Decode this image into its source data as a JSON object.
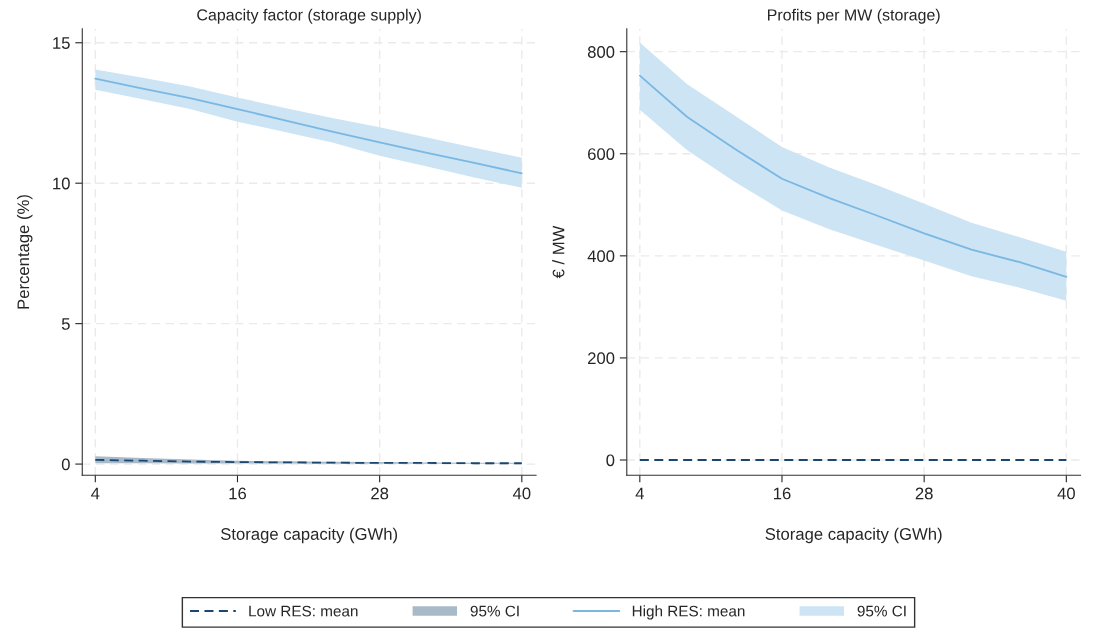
{
  "chart_data": [
    {
      "type": "line",
      "title": "Capacity factor (storage supply)",
      "xlabel": "Storage capacity (GWh)",
      "ylabel": "Percentage (%)",
      "x": [
        4,
        8,
        12,
        16,
        20,
        24,
        28,
        32,
        36,
        40
      ],
      "xlim": [
        2.9,
        41.2
      ],
      "xticks": [
        4,
        16,
        28,
        40
      ],
      "ylim": [
        -0.4,
        15.5
      ],
      "yticks": [
        0,
        5,
        10,
        15
      ],
      "grid": true,
      "legend": "bottom",
      "annotations": [
        "95% CI",
        "95% CI"
      ],
      "series": [
        {
          "name": "Low RES: mean",
          "color": "#1a476f",
          "line_style": "dashed",
          "values": [
            0.15,
            0.12,
            0.09,
            0.07,
            0.06,
            0.05,
            0.04,
            0.04,
            0.03,
            0.03
          ],
          "lower": [
            0.03,
            0.03,
            0.02,
            0.02,
            0.02,
            0.01,
            0.01,
            0.01,
            0.01,
            0.01
          ],
          "upper": [
            0.28,
            0.22,
            0.16,
            0.12,
            0.1,
            0.08,
            0.07,
            0.06,
            0.05,
            0.05
          ]
        },
        {
          "name": "High RES: mean",
          "color": "#7ab8e3",
          "line_style": "solid",
          "values": [
            13.72,
            13.37,
            13.03,
            12.64,
            12.24,
            11.84,
            11.45,
            11.08,
            10.72,
            10.35
          ],
          "lower": [
            13.33,
            12.99,
            12.64,
            12.19,
            11.82,
            11.45,
            10.98,
            10.59,
            10.2,
            9.84
          ],
          "upper": [
            14.05,
            13.75,
            13.44,
            13.05,
            12.68,
            12.32,
            11.99,
            11.63,
            11.26,
            10.91
          ]
        }
      ]
    },
    {
      "type": "line",
      "title": "Profits per MW (storage)",
      "xlabel": "Storage capacity (GWh)",
      "ylabel": "€ / MW",
      "x": [
        4,
        8,
        12,
        16,
        20,
        24,
        28,
        32,
        36,
        40
      ],
      "xlim": [
        2.9,
        41.2
      ],
      "xticks": [
        4,
        16,
        28,
        40
      ],
      "ylim": [
        -30,
        845
      ],
      "yticks": [
        0,
        200,
        400,
        600,
        800
      ],
      "grid": true,
      "series": [
        {
          "color": "#1a476f",
          "line_style": "dashed",
          "values": [
            0,
            0,
            0,
            0,
            0,
            0,
            0,
            0,
            0,
            0
          ]
        },
        {
          "color": "#7ab8e3",
          "line_style": "solid",
          "values": [
            753,
            672,
            610,
            551,
            513,
            479,
            444,
            412,
            388,
            359
          ],
          "lower": [
            686,
            607,
            545,
            489,
            452,
            421,
            391,
            360,
            338,
            312
          ],
          "upper": [
            818,
            736,
            675,
            613,
            573,
            539,
            502,
            465,
            437,
            408
          ]
        }
      ]
    }
  ]
}
